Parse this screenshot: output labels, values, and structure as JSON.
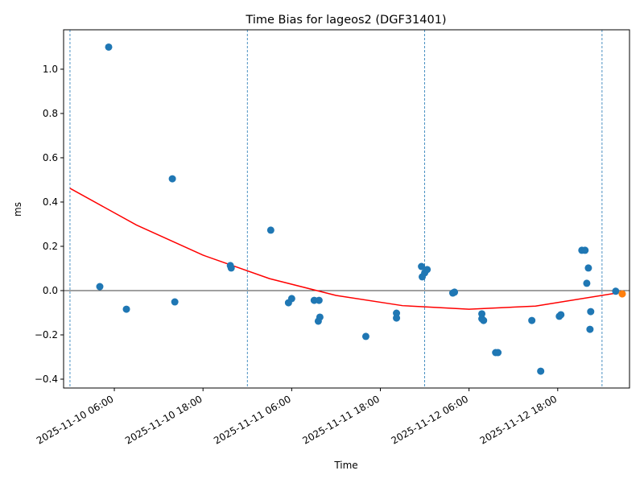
{
  "chart_data": {
    "type": "scatter",
    "title": "Time Bias for lageos2 (DGF31401)",
    "xlabel": "Time",
    "ylabel": "ms",
    "xlim": [
      "2025-11-09 23:08",
      "2025-11-13 03:43"
    ],
    "xticks": [
      "2025-11-10 06:00",
      "2025-11-10 18:00",
      "2025-11-11 06:00",
      "2025-11-11 18:00",
      "2025-11-12 06:00",
      "2025-11-12 18:00"
    ],
    "ylim": [
      -0.44,
      1.178
    ],
    "yticks": [
      {
        "value": -0.4,
        "label": "−0.4"
      },
      {
        "value": -0.2,
        "label": "−0.2"
      },
      {
        "value": 0,
        "label": "0.0"
      },
      {
        "value": 0.2,
        "label": "0.2"
      },
      {
        "value": 0.4,
        "label": "0.4"
      },
      {
        "value": 0.6,
        "label": "0.6"
      },
      {
        "value": 0.8,
        "label": "0.8"
      },
      {
        "value": 1.0,
        "label": "1.0"
      }
    ],
    "hline": 0,
    "vlines": [
      "2025-11-10 00:00",
      "2025-11-11 00:00",
      "2025-11-12 00:00",
      "2025-11-13 00:00"
    ],
    "vline_color": "#1f77b4",
    "series": [
      {
        "kind": "scatter",
        "color": "#1f77b4",
        "x": [
          "2025-11-10 04:02",
          "2025-11-10 05:14",
          "2025-11-10 07:38",
          "2025-11-10 13:51",
          "2025-11-10 14:11",
          "2025-11-10 21:42",
          "2025-11-10 21:49",
          "2025-11-11 03:10",
          "2025-11-11 05:34",
          "2025-11-11 06:00",
          "2025-11-11 09:03",
          "2025-11-11 09:42",
          "2025-11-11 09:36",
          "2025-11-11 09:49",
          "2025-11-11 16:02",
          "2025-11-11 20:11",
          "2025-11-11 20:11",
          "2025-11-11 23:34",
          "2025-11-11 23:40",
          "2025-11-12 00:00",
          "2025-11-12 00:20",
          "2025-11-12 03:48",
          "2025-11-12 04:02",
          "2025-11-12 07:44",
          "2025-11-12 07:44",
          "2025-11-12 07:58",
          "2025-11-12 09:36",
          "2025-11-12 09:55",
          "2025-11-12 14:30",
          "2025-11-12 15:42",
          "2025-11-12 18:13",
          "2025-11-12 18:26",
          "2025-11-12 21:16",
          "2025-11-12 21:42",
          "2025-11-12 21:56",
          "2025-11-12 22:09",
          "2025-11-12 22:28",
          "2025-11-12 22:22",
          "2025-11-13 01:51"
        ],
        "values": [
          0.018,
          1.1,
          -0.084,
          0.505,
          -0.051,
          0.113,
          0.102,
          0.273,
          -0.055,
          -0.036,
          -0.044,
          -0.044,
          -0.138,
          -0.12,
          -0.207,
          -0.102,
          -0.124,
          0.109,
          0.062,
          0.08,
          0.095,
          -0.011,
          -0.007,
          -0.105,
          -0.127,
          -0.135,
          -0.28,
          -0.28,
          -0.135,
          -0.364,
          -0.116,
          -0.109,
          0.182,
          0.182,
          0.033,
          0.102,
          -0.095,
          -0.175,
          -0.003
        ]
      },
      {
        "kind": "scatter",
        "color": "#ff7f0e",
        "x": [
          "2025-11-13 02:44"
        ],
        "values": [
          -0.015
        ]
      },
      {
        "kind": "line",
        "color": "#ff0000",
        "x": [
          "2025-11-10 00:00",
          "2025-11-10 09:00",
          "2025-11-10 18:00",
          "2025-11-11 03:00",
          "2025-11-11 12:00",
          "2025-11-11 21:00",
          "2025-11-12 06:00",
          "2025-11-12 15:00",
          "2025-11-13 02:30"
        ],
        "values": [
          0.462,
          0.296,
          0.16,
          0.054,
          -0.022,
          -0.068,
          -0.084,
          -0.07,
          -0.008
        ]
      }
    ]
  }
}
